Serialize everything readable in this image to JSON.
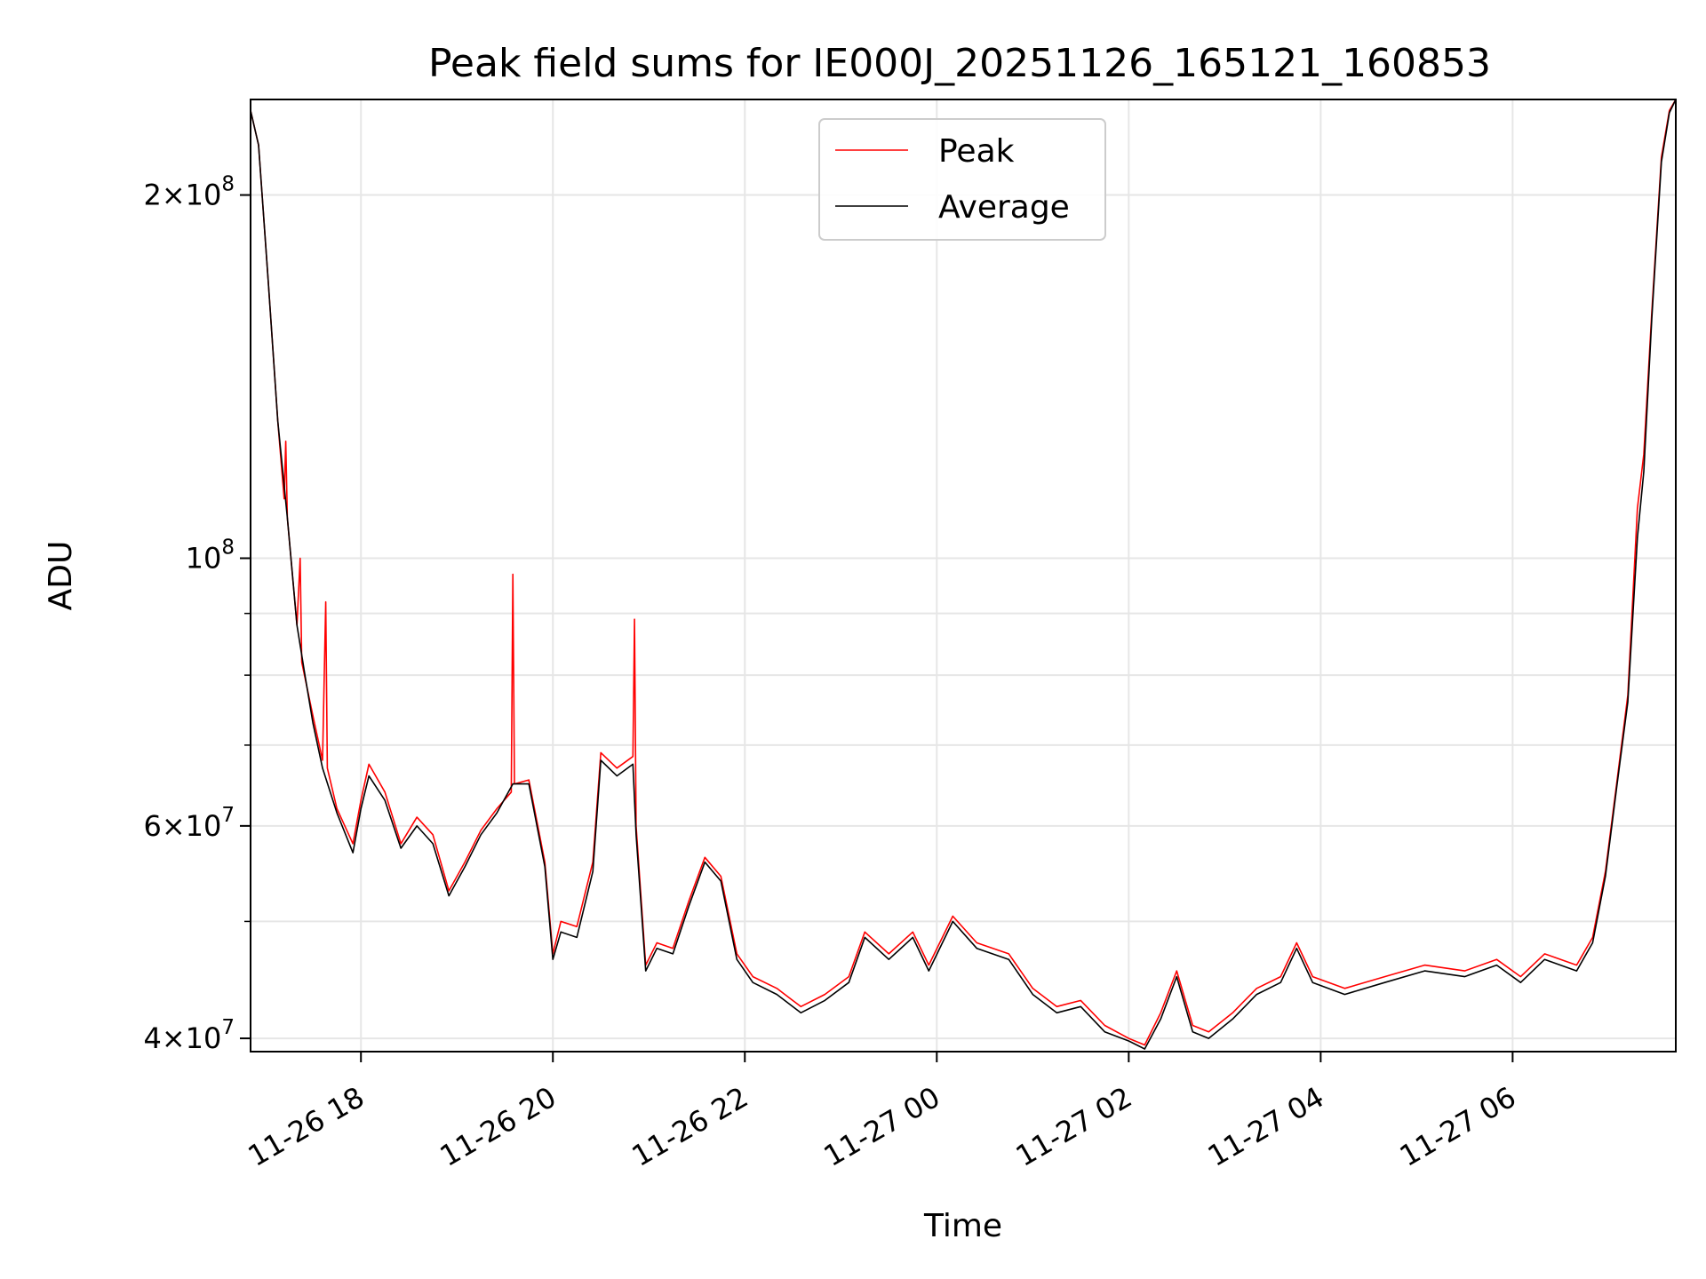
{
  "chart_data": {
    "type": "line",
    "title": "Peak field sums for IE000J_20251126_165121_160853",
    "xlabel": "Time",
    "ylabel": "ADU",
    "y_scale": "log",
    "ylim": [
      39000000,
      240000000
    ],
    "xlim": [
      "2025-11-26T16:51",
      "2025-11-27T07:42"
    ],
    "grid": true,
    "legend_position": "top-center",
    "x_ticks": [
      {
        "value": "2025-11-26T18:00",
        "label": "11-26 18"
      },
      {
        "value": "2025-11-26T20:00",
        "label": "11-26 20"
      },
      {
        "value": "2025-11-26T22:00",
        "label": "11-26 22"
      },
      {
        "value": "2025-11-27T00:00",
        "label": "11-27 00"
      },
      {
        "value": "2025-11-27T02:00",
        "label": "11-27 02"
      },
      {
        "value": "2025-11-27T04:00",
        "label": "11-27 04"
      },
      {
        "value": "2025-11-27T06:00",
        "label": "11-27 06"
      }
    ],
    "y_ticks": [
      {
        "value": 40000000,
        "label_base": "4",
        "label_exp": "7"
      },
      {
        "value": 60000000,
        "label_base": "6",
        "label_exp": "7"
      },
      {
        "value": 100000000,
        "label_base": "",
        "label_exp": "8"
      },
      {
        "value": 200000000,
        "label_base": "2",
        "label_exp": "8"
      }
    ],
    "y_minor_ticks": [
      50000000,
      70000000,
      80000000,
      90000000
    ],
    "series": [
      {
        "name": "Peak",
        "color": "#ff0000",
        "points": [
          [
            "2025-11-26T16:51",
            235000000
          ],
          [
            "2025-11-26T16:56",
            220000000
          ],
          [
            "2025-11-26T17:02",
            170000000
          ],
          [
            "2025-11-26T17:08",
            130000000
          ],
          [
            "2025-11-26T17:12",
            112000000
          ],
          [
            "2025-11-26T17:13",
            125000000
          ],
          [
            "2025-11-26T17:14",
            108000000
          ],
          [
            "2025-11-26T17:20",
            88000000
          ],
          [
            "2025-11-26T17:22",
            100000000
          ],
          [
            "2025-11-26T17:23",
            82000000
          ],
          [
            "2025-11-26T17:30",
            74000000
          ],
          [
            "2025-11-26T17:36",
            68000000
          ],
          [
            "2025-11-26T17:38",
            92000000
          ],
          [
            "2025-11-26T17:39",
            67000000
          ],
          [
            "2025-11-26T17:45",
            62000000
          ],
          [
            "2025-11-26T17:55",
            58000000
          ],
          [
            "2025-11-26T18:00",
            63000000
          ],
          [
            "2025-11-26T18:05",
            67500000
          ],
          [
            "2025-11-26T18:15",
            64000000
          ],
          [
            "2025-11-26T18:25",
            58000000
          ],
          [
            "2025-11-26T18:35",
            61000000
          ],
          [
            "2025-11-26T18:45",
            59000000
          ],
          [
            "2025-11-26T18:55",
            53000000
          ],
          [
            "2025-11-26T19:05",
            56000000
          ],
          [
            "2025-11-26T19:15",
            59500000
          ],
          [
            "2025-11-26T19:25",
            62000000
          ],
          [
            "2025-11-26T19:34",
            64000000
          ],
          [
            "2025-11-26T19:35",
            97000000
          ],
          [
            "2025-11-26T19:36",
            65000000
          ],
          [
            "2025-11-26T19:45",
            65500000
          ],
          [
            "2025-11-26T19:55",
            56000000
          ],
          [
            "2025-11-26T20:00",
            47000000
          ],
          [
            "2025-11-26T20:05",
            50000000
          ],
          [
            "2025-11-26T20:15",
            49500000
          ],
          [
            "2025-11-26T20:25",
            56000000
          ],
          [
            "2025-11-26T20:30",
            69000000
          ],
          [
            "2025-11-26T20:40",
            67000000
          ],
          [
            "2025-11-26T20:50",
            68500000
          ],
          [
            "2025-11-26T20:51",
            89000000
          ],
          [
            "2025-11-26T20:52",
            60000000
          ],
          [
            "2025-11-26T20:58",
            46000000
          ],
          [
            "2025-11-26T21:05",
            48000000
          ],
          [
            "2025-11-26T21:15",
            47500000
          ],
          [
            "2025-11-26T21:25",
            52000000
          ],
          [
            "2025-11-26T21:35",
            56500000
          ],
          [
            "2025-11-26T21:45",
            54500000
          ],
          [
            "2025-11-26T21:55",
            47000000
          ],
          [
            "2025-11-26T22:05",
            45000000
          ],
          [
            "2025-11-26T22:20",
            44000000
          ],
          [
            "2025-11-26T22:35",
            42500000
          ],
          [
            "2025-11-26T22:50",
            43500000
          ],
          [
            "2025-11-26T23:05",
            45000000
          ],
          [
            "2025-11-26T23:15",
            49000000
          ],
          [
            "2025-11-26T23:30",
            47000000
          ],
          [
            "2025-11-26T23:45",
            49000000
          ],
          [
            "2025-11-26T23:55",
            46000000
          ],
          [
            "2025-11-27T00:10",
            50500000
          ],
          [
            "2025-11-27T00:25",
            48000000
          ],
          [
            "2025-11-27T00:45",
            47000000
          ],
          [
            "2025-11-27T01:00",
            44000000
          ],
          [
            "2025-11-27T01:15",
            42500000
          ],
          [
            "2025-11-27T01:30",
            43000000
          ],
          [
            "2025-11-27T01:45",
            41000000
          ],
          [
            "2025-11-27T02:00",
            40000000
          ],
          [
            "2025-11-27T02:10",
            39500000
          ],
          [
            "2025-11-27T02:20",
            42000000
          ],
          [
            "2025-11-27T02:30",
            45500000
          ],
          [
            "2025-11-27T02:40",
            41000000
          ],
          [
            "2025-11-27T02:50",
            40500000
          ],
          [
            "2025-11-27T03:05",
            42000000
          ],
          [
            "2025-11-27T03:20",
            44000000
          ],
          [
            "2025-11-27T03:35",
            45000000
          ],
          [
            "2025-11-27T03:45",
            48000000
          ],
          [
            "2025-11-27T03:55",
            45000000
          ],
          [
            "2025-11-27T04:15",
            44000000
          ],
          [
            "2025-11-27T04:40",
            45000000
          ],
          [
            "2025-11-27T05:05",
            46000000
          ],
          [
            "2025-11-27T05:30",
            45500000
          ],
          [
            "2025-11-27T05:50",
            46500000
          ],
          [
            "2025-11-27T06:05",
            45000000
          ],
          [
            "2025-11-27T06:20",
            47000000
          ],
          [
            "2025-11-27T06:40",
            46000000
          ],
          [
            "2025-11-27T06:50",
            48500000
          ],
          [
            "2025-11-27T06:58",
            55000000
          ],
          [
            "2025-11-27T07:05",
            65000000
          ],
          [
            "2025-11-27T07:12",
            77000000
          ],
          [
            "2025-11-27T07:18",
            110000000
          ],
          [
            "2025-11-27T07:22",
            122000000
          ],
          [
            "2025-11-27T07:27",
            160000000
          ],
          [
            "2025-11-27T07:33",
            215000000
          ],
          [
            "2025-11-27T07:38",
            235000000
          ],
          [
            "2025-11-27T07:42",
            240000000
          ]
        ]
      },
      {
        "name": "Average",
        "color": "#000000",
        "points": [
          [
            "2025-11-26T16:51",
            235000000
          ],
          [
            "2025-11-26T16:56",
            220000000
          ],
          [
            "2025-11-26T17:02",
            170000000
          ],
          [
            "2025-11-26T17:08",
            130000000
          ],
          [
            "2025-11-26T17:14",
            108000000
          ],
          [
            "2025-11-26T17:20",
            88000000
          ],
          [
            "2025-11-26T17:25",
            80000000
          ],
          [
            "2025-11-26T17:30",
            73000000
          ],
          [
            "2025-11-26T17:36",
            67000000
          ],
          [
            "2025-11-26T17:45",
            61500000
          ],
          [
            "2025-11-26T17:55",
            57000000
          ],
          [
            "2025-11-26T18:00",
            62000000
          ],
          [
            "2025-11-26T18:05",
            66000000
          ],
          [
            "2025-11-26T18:15",
            63000000
          ],
          [
            "2025-11-26T18:25",
            57500000
          ],
          [
            "2025-11-26T18:35",
            60000000
          ],
          [
            "2025-11-26T18:45",
            58000000
          ],
          [
            "2025-11-26T18:55",
            52500000
          ],
          [
            "2025-11-26T19:05",
            55500000
          ],
          [
            "2025-11-26T19:15",
            59000000
          ],
          [
            "2025-11-26T19:25",
            61500000
          ],
          [
            "2025-11-26T19:35",
            65000000
          ],
          [
            "2025-11-26T19:45",
            65000000
          ],
          [
            "2025-11-26T19:55",
            55500000
          ],
          [
            "2025-11-26T20:00",
            46500000
          ],
          [
            "2025-11-26T20:05",
            49000000
          ],
          [
            "2025-11-26T20:15",
            48500000
          ],
          [
            "2025-11-26T20:25",
            55000000
          ],
          [
            "2025-11-26T20:30",
            68000000
          ],
          [
            "2025-11-26T20:40",
            66000000
          ],
          [
            "2025-11-26T20:50",
            67500000
          ],
          [
            "2025-11-26T20:52",
            59000000
          ],
          [
            "2025-11-26T20:58",
            45500000
          ],
          [
            "2025-11-26T21:05",
            47500000
          ],
          [
            "2025-11-26T21:15",
            47000000
          ],
          [
            "2025-11-26T21:25",
            51500000
          ],
          [
            "2025-11-26T21:35",
            56000000
          ],
          [
            "2025-11-26T21:45",
            54000000
          ],
          [
            "2025-11-26T21:55",
            46500000
          ],
          [
            "2025-11-26T22:05",
            44500000
          ],
          [
            "2025-11-26T22:20",
            43500000
          ],
          [
            "2025-11-26T22:35",
            42000000
          ],
          [
            "2025-11-26T22:50",
            43000000
          ],
          [
            "2025-11-26T23:05",
            44500000
          ],
          [
            "2025-11-26T23:15",
            48500000
          ],
          [
            "2025-11-26T23:30",
            46500000
          ],
          [
            "2025-11-26T23:45",
            48500000
          ],
          [
            "2025-11-26T23:55",
            45500000
          ],
          [
            "2025-11-27T00:10",
            50000000
          ],
          [
            "2025-11-27T00:25",
            47500000
          ],
          [
            "2025-11-27T00:45",
            46500000
          ],
          [
            "2025-11-27T01:00",
            43500000
          ],
          [
            "2025-11-27T01:15",
            42000000
          ],
          [
            "2025-11-27T01:30",
            42500000
          ],
          [
            "2025-11-27T01:45",
            40500000
          ],
          [
            "2025-11-27T02:00",
            39800000
          ],
          [
            "2025-11-27T02:10",
            39200000
          ],
          [
            "2025-11-27T02:20",
            41500000
          ],
          [
            "2025-11-27T02:30",
            45000000
          ],
          [
            "2025-11-27T02:40",
            40500000
          ],
          [
            "2025-11-27T02:50",
            40000000
          ],
          [
            "2025-11-27T03:05",
            41500000
          ],
          [
            "2025-11-27T03:20",
            43500000
          ],
          [
            "2025-11-27T03:35",
            44500000
          ],
          [
            "2025-11-27T03:45",
            47500000
          ],
          [
            "2025-11-27T03:55",
            44500000
          ],
          [
            "2025-11-27T04:15",
            43500000
          ],
          [
            "2025-11-27T04:40",
            44500000
          ],
          [
            "2025-11-27T05:05",
            45500000
          ],
          [
            "2025-11-27T05:30",
            45000000
          ],
          [
            "2025-11-27T05:50",
            46000000
          ],
          [
            "2025-11-27T06:05",
            44500000
          ],
          [
            "2025-11-27T06:20",
            46500000
          ],
          [
            "2025-11-27T06:40",
            45500000
          ],
          [
            "2025-11-27T06:50",
            48000000
          ],
          [
            "2025-11-27T06:58",
            54500000
          ],
          [
            "2025-11-27T07:05",
            64500000
          ],
          [
            "2025-11-27T07:12",
            76000000
          ],
          [
            "2025-11-27T07:18",
            104000000
          ],
          [
            "2025-11-27T07:22",
            118000000
          ],
          [
            "2025-11-27T07:27",
            158000000
          ],
          [
            "2025-11-27T07:33",
            213000000
          ],
          [
            "2025-11-27T07:38",
            234000000
          ],
          [
            "2025-11-27T07:42",
            240000000
          ]
        ]
      }
    ]
  }
}
